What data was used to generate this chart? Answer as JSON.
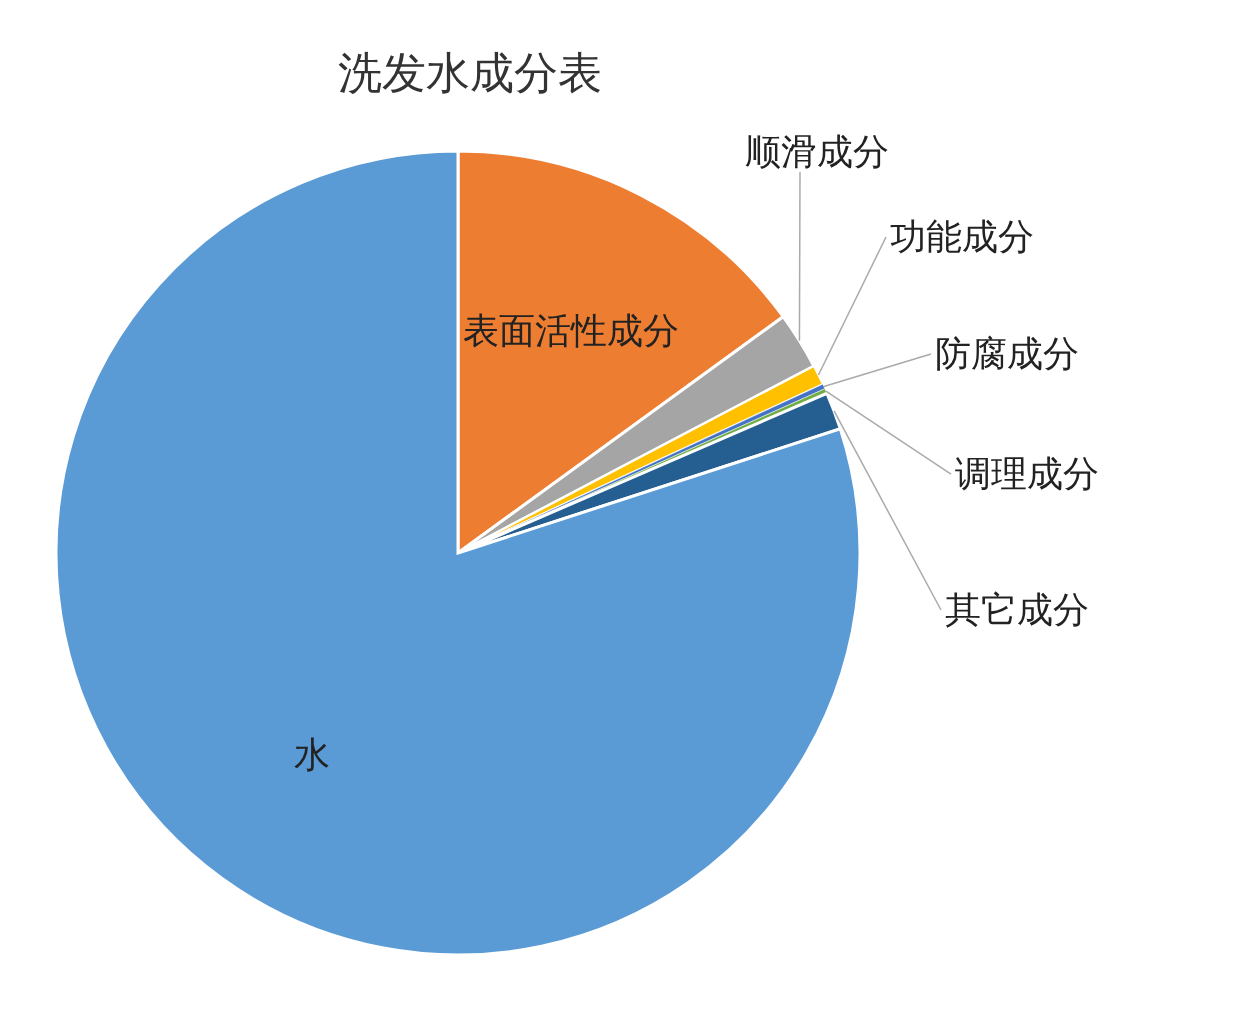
{
  "chart_data": {
    "type": "pie",
    "title": "洗发水成分表",
    "categories": [
      "表面活性成分",
      "顺滑成分",
      "功能成分",
      "防腐成分",
      "调理成分",
      "其它成分",
      "水"
    ],
    "values": [
      15,
      2.3,
      0.8,
      0.2,
      0.2,
      1.5,
      80
    ],
    "colors": [
      "#ed7d31",
      "#a5a5a5",
      "#ffc000",
      "#4472c4",
      "#70ad47",
      "#255e91",
      "#5b9bd5"
    ]
  }
}
